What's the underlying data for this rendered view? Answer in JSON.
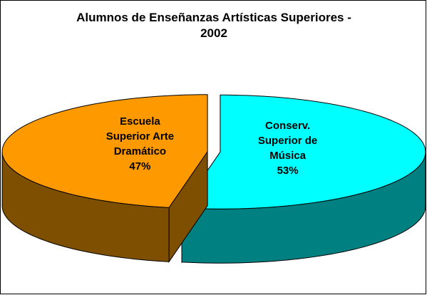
{
  "chart_data": {
    "type": "pie3d",
    "title": "Alumnos de Enseñanzas Artísticas Superiores - 2002",
    "categories": [
      "Conserv. Superior de Música",
      "Escuela Superior Arte Dramático"
    ],
    "values": [
      53,
      47
    ],
    "value_labels": [
      "53%",
      "47%"
    ],
    "colors": [
      "#00ffff",
      "#ff9900"
    ],
    "side_colors": [
      "#008080",
      "#7f4f00"
    ]
  }
}
